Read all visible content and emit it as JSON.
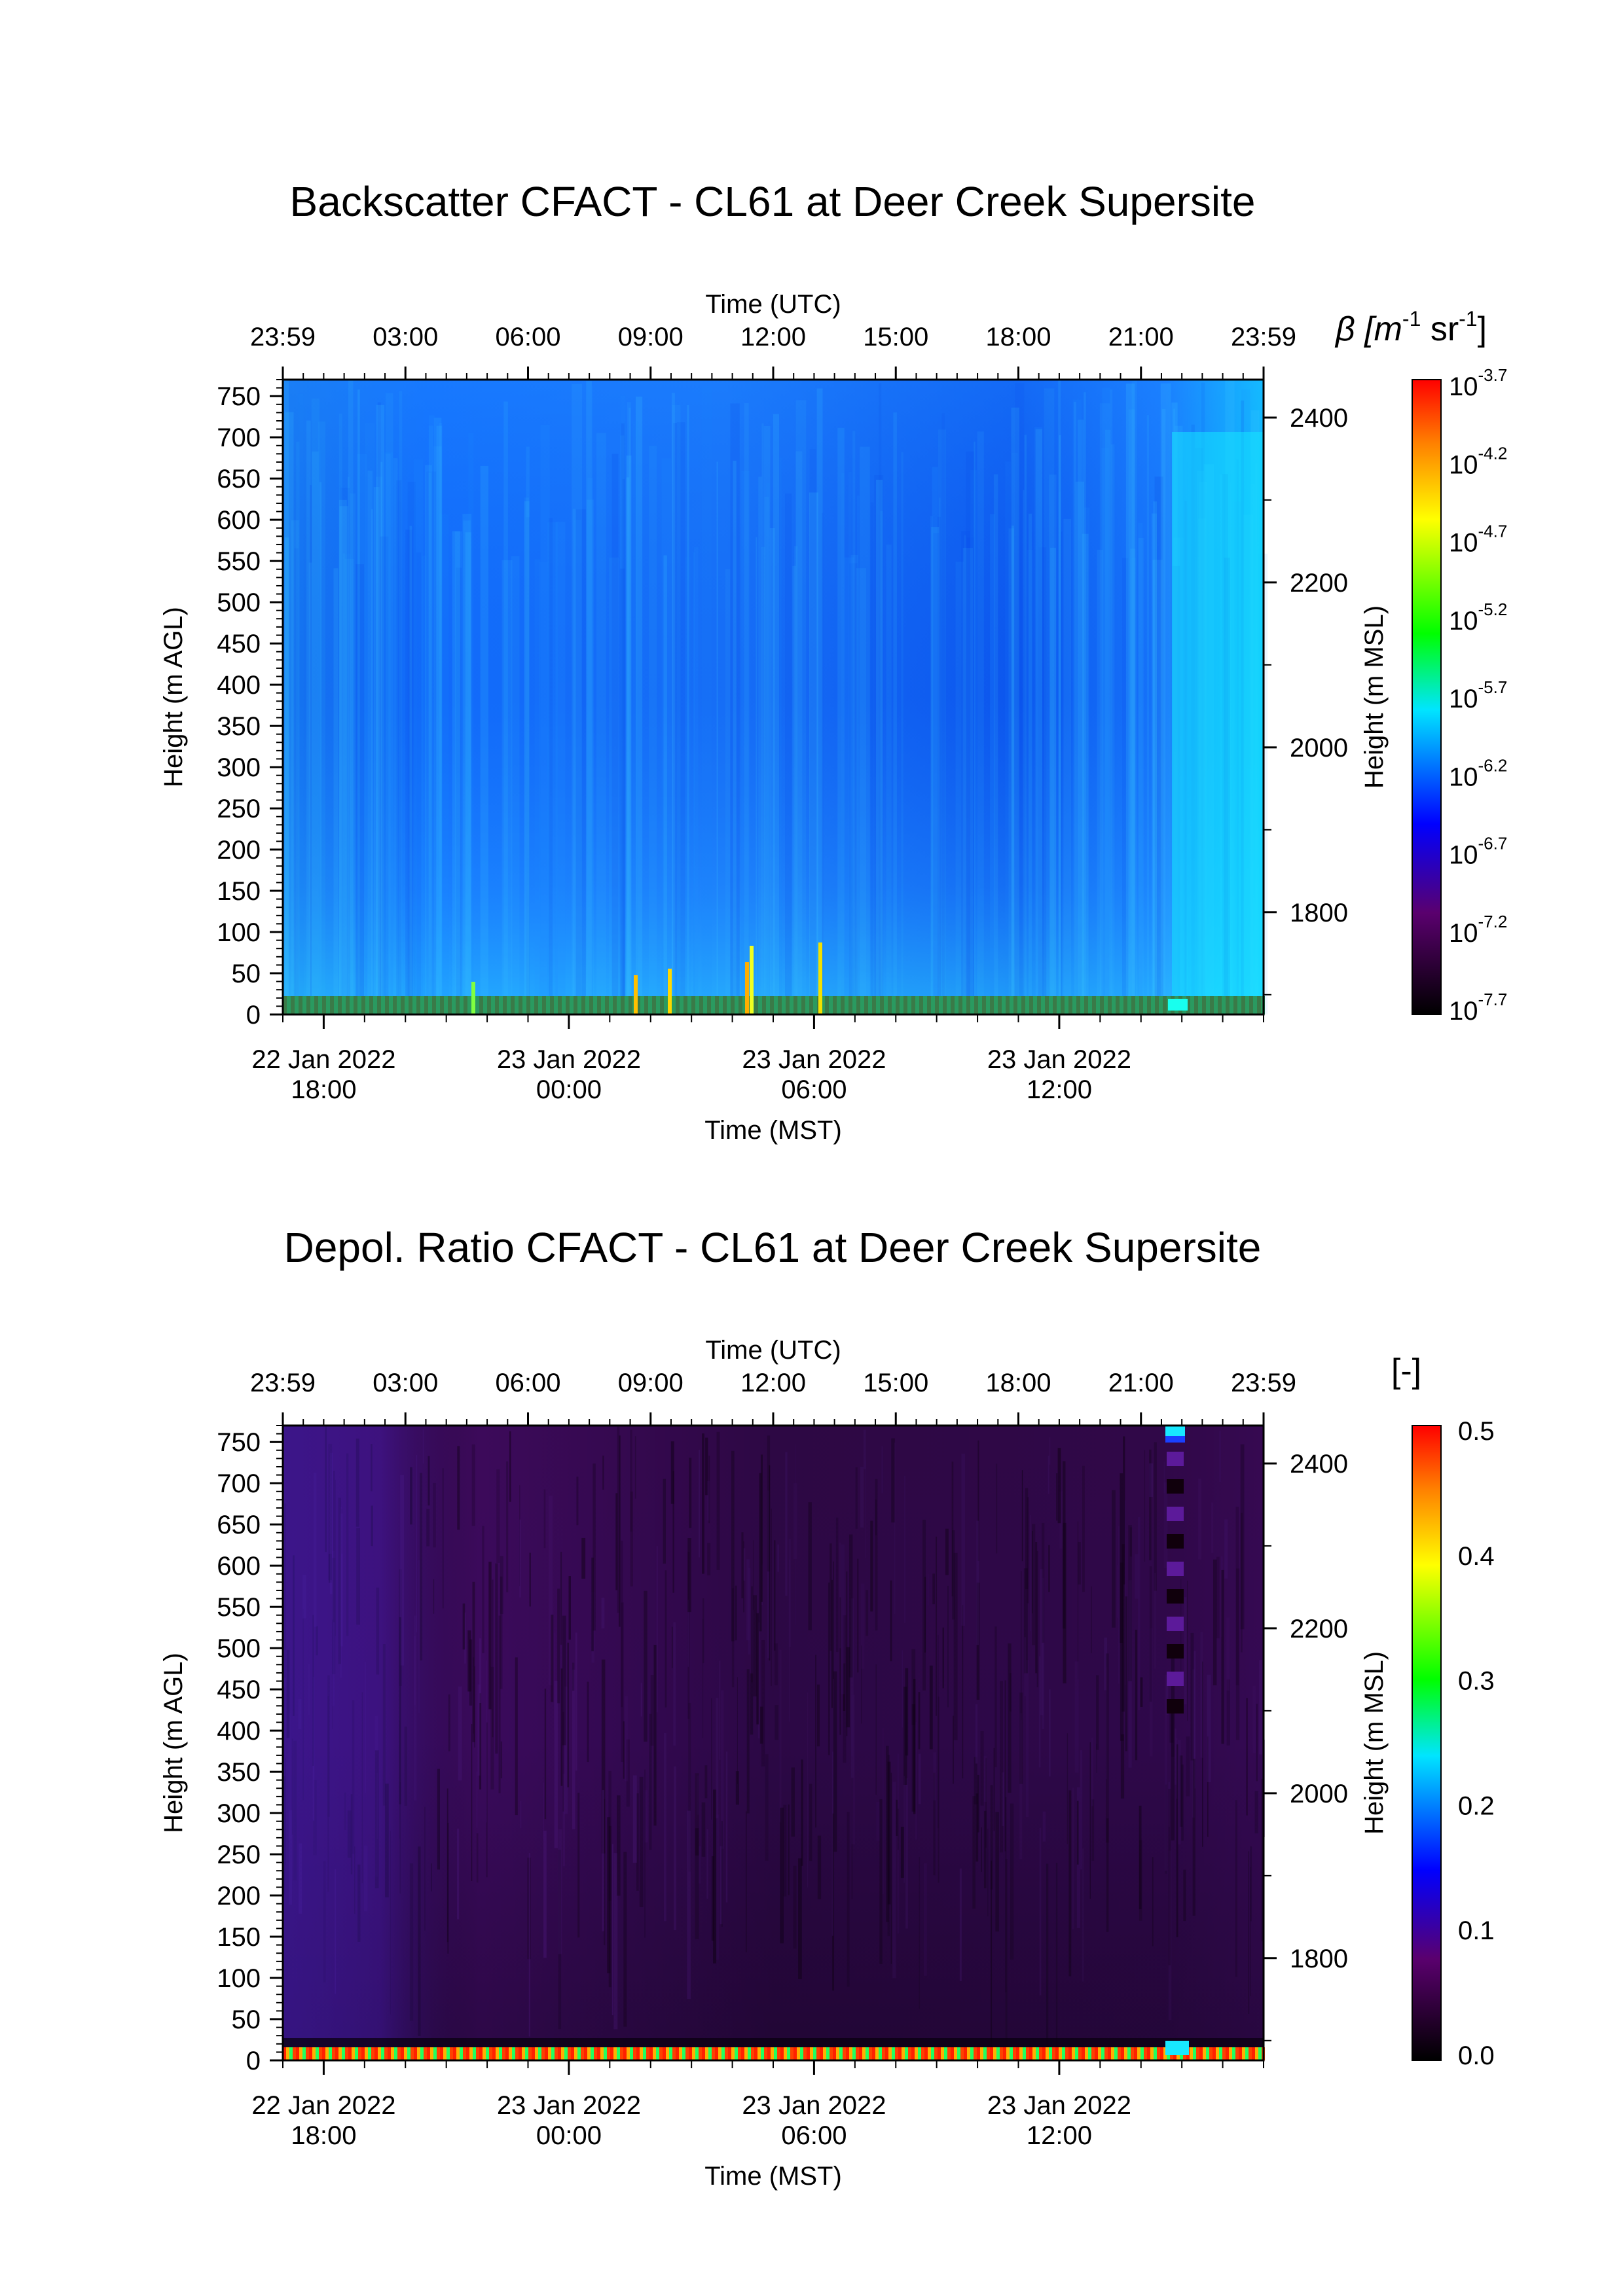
{
  "chart_data": [
    {
      "type": "heatmap",
      "title": "Backscatter CFACT - CL61 at Deer Creek Supersite",
      "xlabel_top": "Time (UTC)",
      "xlabel_bottom": "Time (MST)",
      "ylabel_left": "Height (m AGL)",
      "ylabel_right": "Height (m MSL)",
      "colorbar_label": "β [m-1 sr-1]",
      "colorbar_scale": "log",
      "colorbar_ticks": [
        "10 -3.7",
        "10 -4.2",
        "10 -4.7",
        "10 -5.2",
        "10 -5.7",
        "10 -6.2",
        "10 -6.7",
        "10 -7.2",
        "10 -7.7"
      ],
      "colorbar_range": [
        -7.7,
        -3.7
      ],
      "x_top_ticks": [
        "23:59",
        "03:00",
        "06:00",
        "09:00",
        "12:00",
        "15:00",
        "18:00",
        "21:00",
        "23:59"
      ],
      "x_bottom_ticks": [
        {
          "date": "22 Jan 2022",
          "time": "18:00"
        },
        {
          "date": "23 Jan 2022",
          "time": "00:00"
        },
        {
          "date": "23 Jan 2022",
          "time": "06:00"
        },
        {
          "date": "23 Jan 2022",
          "time": "12:00"
        }
      ],
      "y_left_ticks": [
        "750",
        "700",
        "650",
        "600",
        "550",
        "500",
        "450",
        "400",
        "350",
        "300",
        "250",
        "200",
        "150",
        "100",
        "50",
        "0"
      ],
      "y_right_ticks": [
        "2400",
        "2200",
        "2000",
        "1800"
      ],
      "ylim_agl": [
        0,
        770
      ],
      "colormap": [
        "#000000",
        "#5a006e",
        "#0000ff",
        "#00e5ff",
        "#00ff00",
        "#ffff00",
        "#ff0000"
      ],
      "field_description": "mostly blue (~1e-6.4) throughout; cyan enhancements near surface and after 22 UTC; yellow/green near-surface spikes near 09-12 UTC"
    },
    {
      "type": "heatmap",
      "title": "Depol. Ratio CFACT - CL61 at Deer Creek Supersite",
      "xlabel_top": "Time (UTC)",
      "xlabel_bottom": "Time (MST)",
      "ylabel_left": "Height (m AGL)",
      "ylabel_right": "Height (m MSL)",
      "colorbar_label": "[-]",
      "colorbar_scale": "linear",
      "colorbar_ticks": [
        "0.5",
        "0.4",
        "0.3",
        "0.2",
        "0.1",
        "0.0"
      ],
      "colorbar_range": [
        0.0,
        0.5
      ],
      "x_top_ticks": [
        "23:59",
        "03:00",
        "06:00",
        "09:00",
        "12:00",
        "15:00",
        "18:00",
        "21:00",
        "23:59"
      ],
      "x_bottom_ticks": [
        {
          "date": "22 Jan 2022",
          "time": "18:00"
        },
        {
          "date": "23 Jan 2022",
          "time": "00:00"
        },
        {
          "date": "23 Jan 2022",
          "time": "06:00"
        },
        {
          "date": "23 Jan 2022",
          "time": "12:00"
        }
      ],
      "y_left_ticks": [
        "750",
        "700",
        "650",
        "600",
        "550",
        "500",
        "450",
        "400",
        "350",
        "300",
        "250",
        "200",
        "150",
        "100",
        "50",
        "0"
      ],
      "y_right_ticks": [
        "2400",
        "2200",
        "2000",
        "1800"
      ],
      "ylim_agl": [
        0,
        770
      ],
      "colormap": [
        "#000000",
        "#5a006e",
        "#0000ff",
        "#00e5ff",
        "#00ff00",
        "#ffff00",
        "#ff0000"
      ],
      "field_description": "dark purple (~0.03-0.06) throughout, blue-purple streaks 00-03 UTC, red/green near-surface band, bright cyan near top around 22 UTC"
    }
  ]
}
